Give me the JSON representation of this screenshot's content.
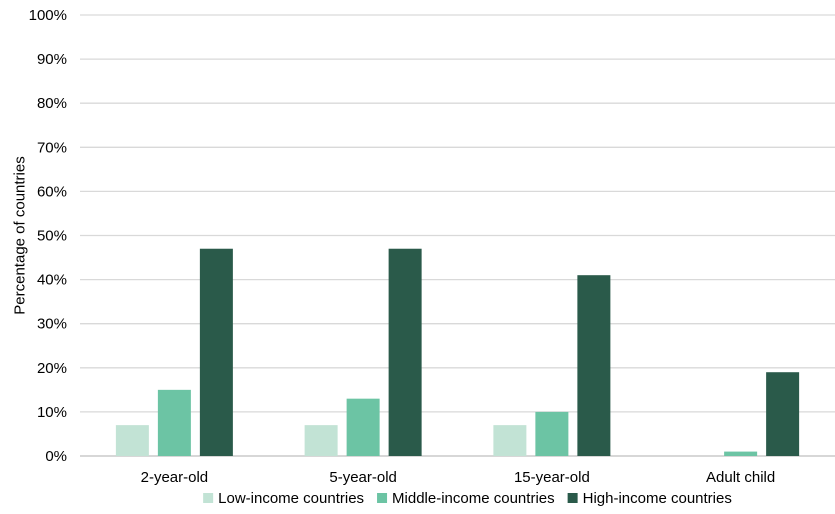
{
  "chart_data": {
    "type": "bar",
    "title": "",
    "xlabel": "",
    "ylabel": "Percentage of countries",
    "ylim": [
      0,
      100
    ],
    "yticks": [
      "0%",
      "10%",
      "20%",
      "30%",
      "40%",
      "50%",
      "60%",
      "70%",
      "80%",
      "90%",
      "100%"
    ],
    "grid": true,
    "legend_position": "bottom",
    "categories": [
      "2-year-old",
      "5-year-old",
      "15-year-old",
      "Adult child"
    ],
    "series": [
      {
        "name": "Low-income countries",
        "color": "#c2e3d5",
        "values": [
          7,
          7,
          7,
          0
        ]
      },
      {
        "name": "Middle-income countries",
        "color": "#6cc4a4",
        "values": [
          15,
          13,
          10,
          1
        ]
      },
      {
        "name": "High-income countries",
        "color": "#2a5a4a",
        "values": [
          47,
          47,
          41,
          19
        ]
      }
    ]
  }
}
